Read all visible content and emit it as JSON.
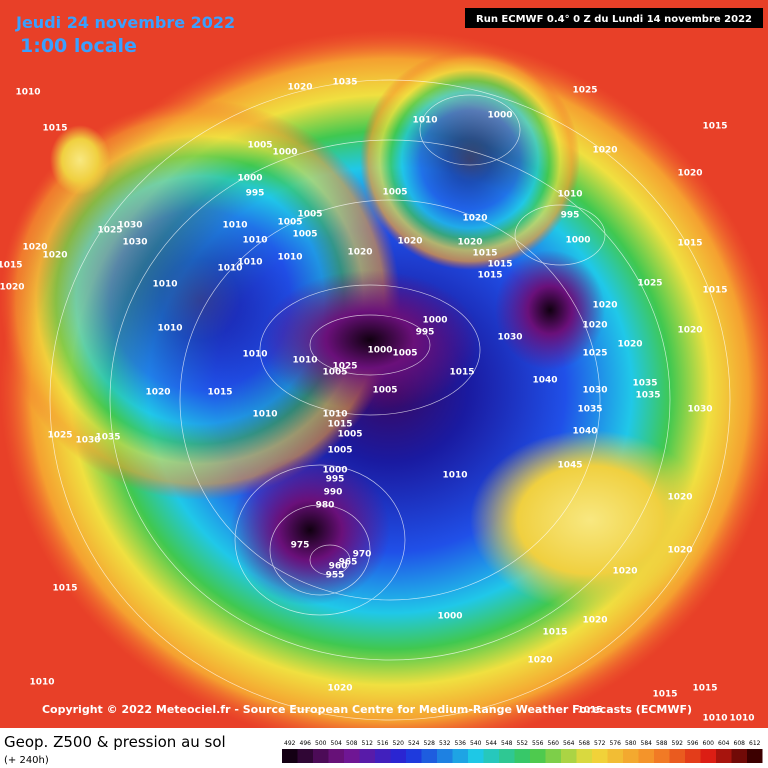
{
  "header": {
    "date": "Jeudi 24 novembre 2022",
    "time": "1:00 locale",
    "run": "Run ECMWF 0.4° 0 Z du Lundi 14 novembre 2022"
  },
  "copyright": "Copyright © 2022 Meteociel.fr - Source European Centre for Medium-Range Weather Forecasts (ECMWF)",
  "legend": {
    "title": "Geop. Z500 & pression au sol",
    "subtitle": "(+ 240h)",
    "scale": [
      492,
      496,
      500,
      504,
      508,
      512,
      516,
      520,
      524,
      528,
      532,
      536,
      540,
      544,
      548,
      552,
      556,
      560,
      564,
      568,
      572,
      576,
      580,
      584,
      588,
      592,
      596,
      600,
      604,
      608,
      612
    ]
  },
  "isobar_labels": [
    1010,
    1015,
    1005,
    1000,
    1000,
    995,
    1030,
    1025,
    1030,
    1020,
    1020,
    1015,
    1020,
    1010,
    1005,
    1005,
    1005,
    1010,
    1010,
    1010,
    1010,
    1010,
    1010,
    1010,
    1010,
    1025,
    1005,
    1000,
    1005,
    1000,
    995,
    1020,
    1015,
    1010,
    1010,
    1015,
    1005,
    1005,
    1000,
    995,
    990,
    980,
    1025,
    1030,
    1035,
    975,
    970,
    965,
    960,
    955,
    1005,
    1020,
    1005,
    1015,
    1030,
    1040,
    1045,
    1020,
    1035,
    1000,
    1025,
    1015,
    1020,
    1020,
    1010,
    995,
    1000,
    1015,
    1025,
    1020,
    1020,
    1025,
    1020,
    1020,
    1015,
    1030,
    1035,
    1035,
    1035,
    1030,
    1040,
    1020,
    1020,
    1020,
    1015,
    1020,
    1015,
    1015,
    1020,
    1010,
    1000,
    1020,
    1015,
    1020,
    1015,
    1015,
    1010,
    1020,
    1015,
    1015,
    1010,
    1010,
    1010,
    1020
  ]
}
